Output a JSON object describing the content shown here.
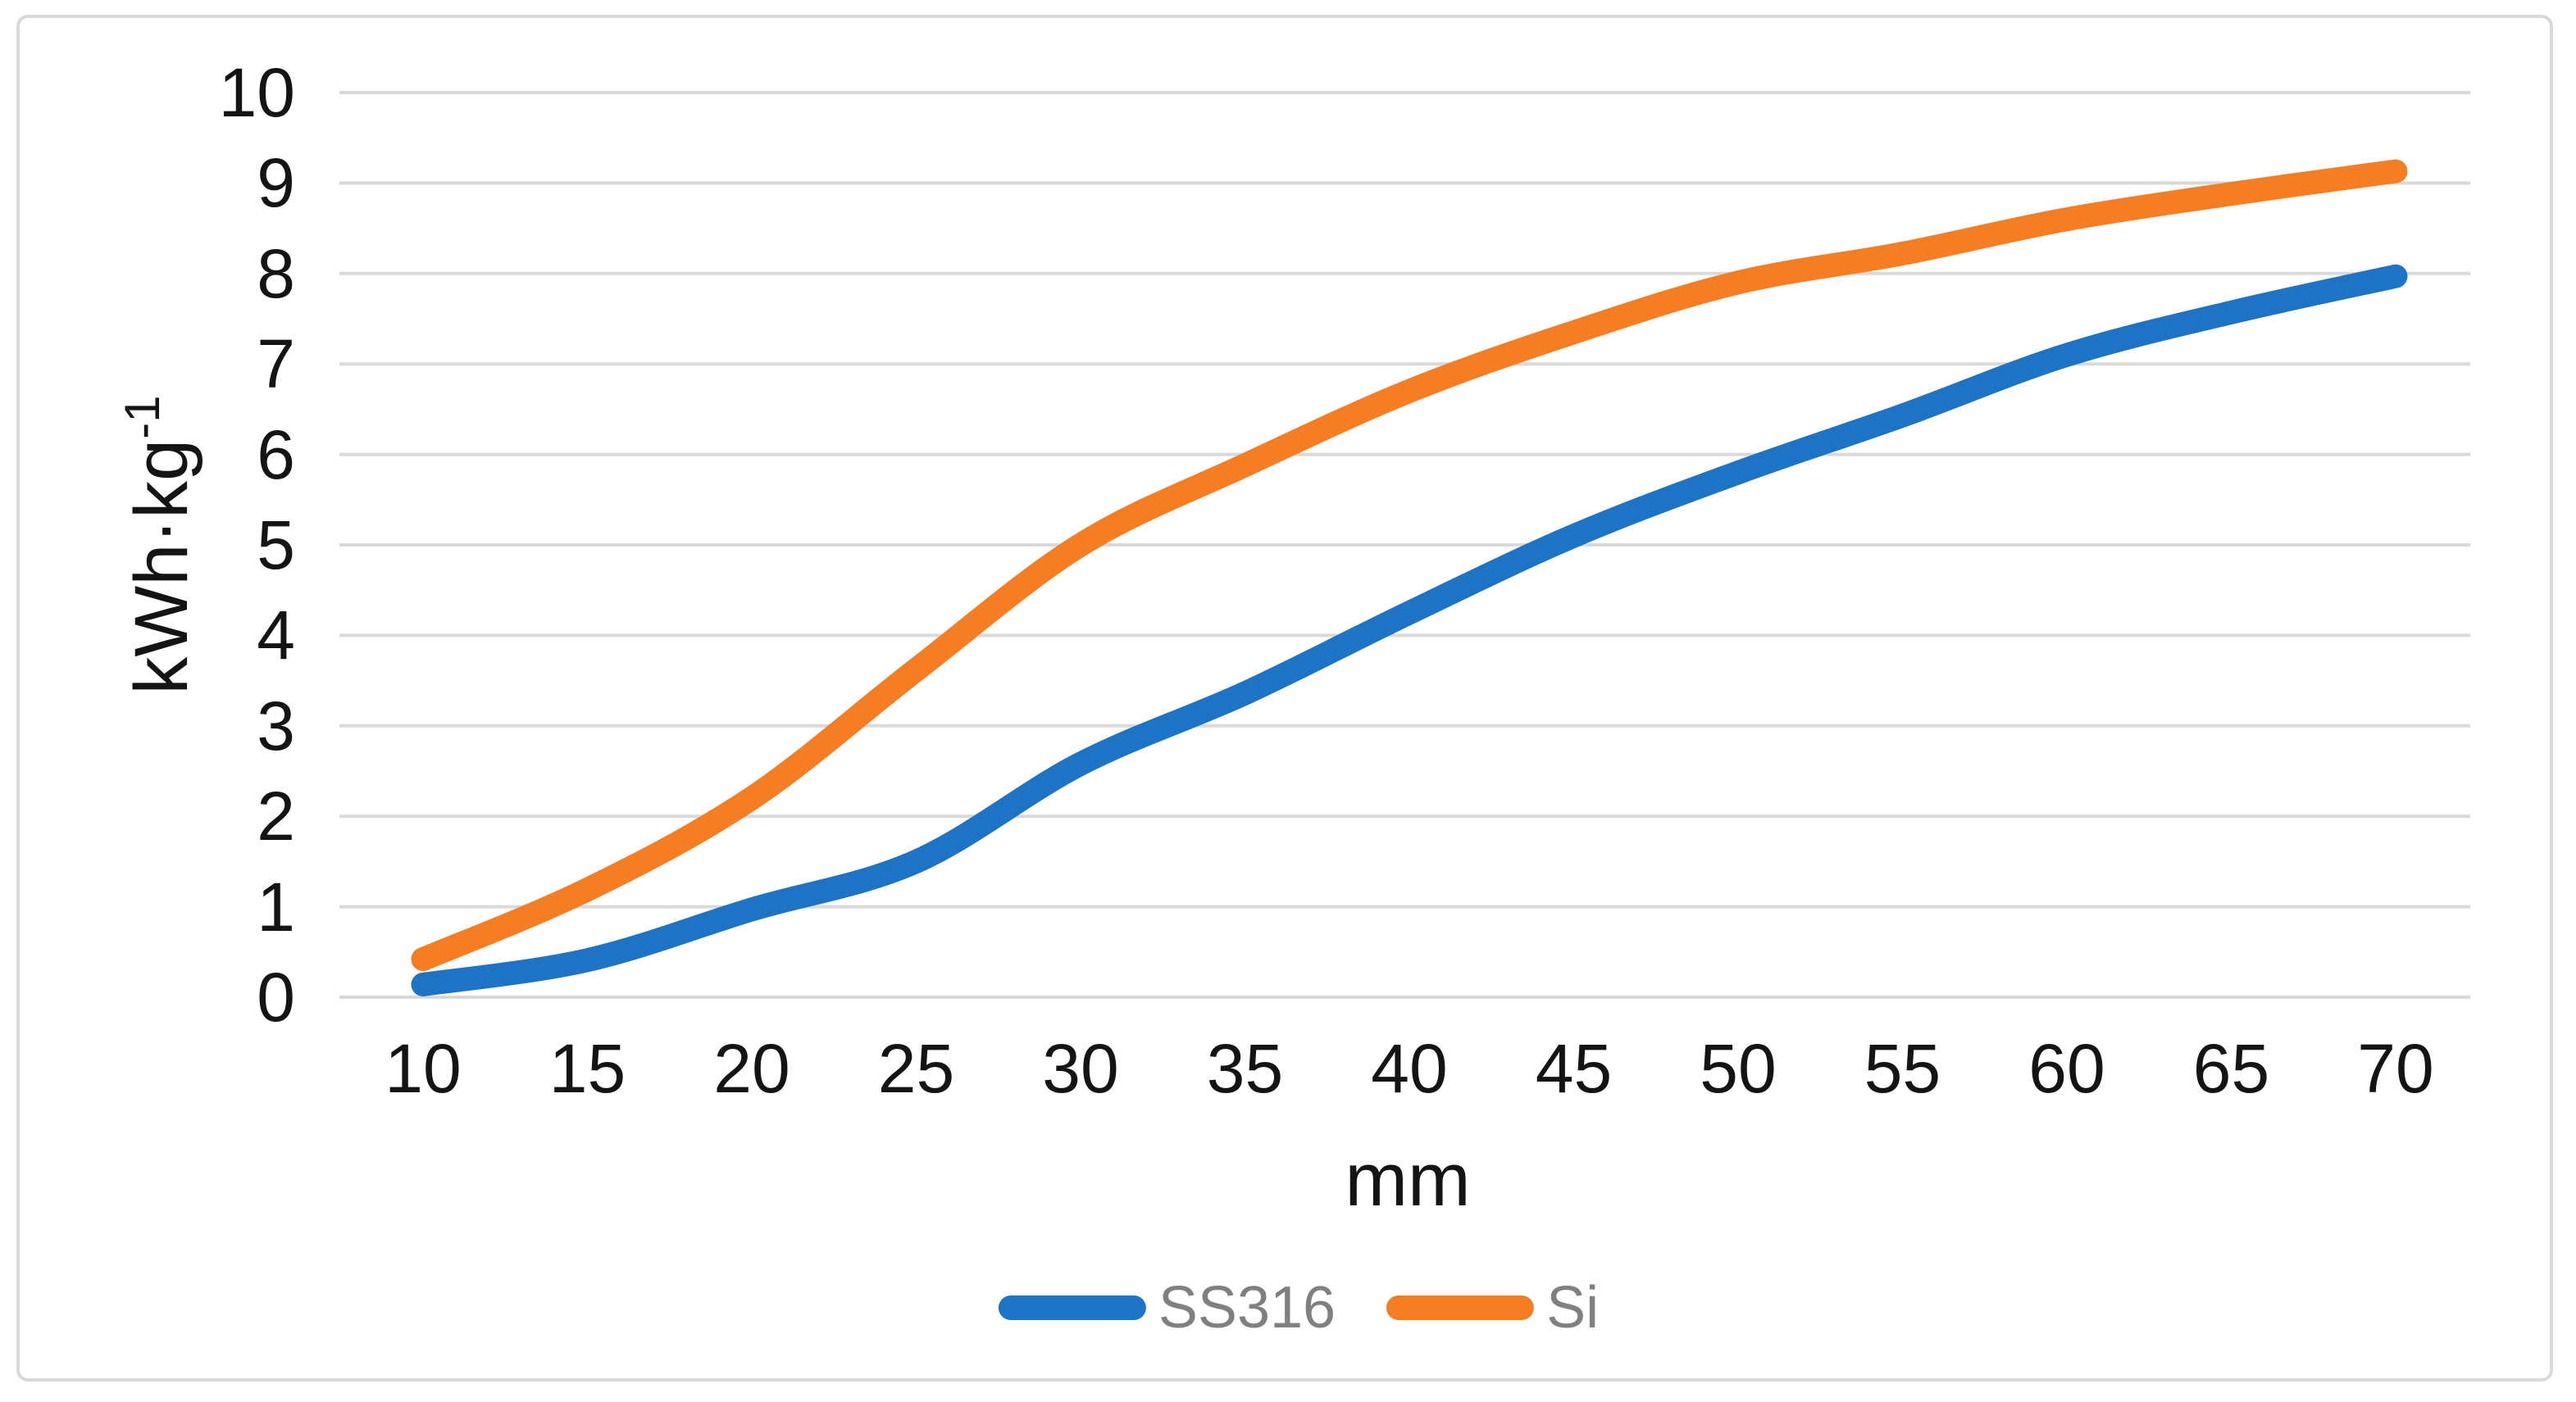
{
  "figure": {
    "background_color": "#ffffff",
    "border_color": "#d9d9d9"
  },
  "chart_data": {
    "type": "line",
    "smooth": true,
    "x": [
      10,
      15,
      20,
      25,
      30,
      35,
      40,
      45,
      50,
      55,
      60,
      65,
      70
    ],
    "series": [
      {
        "name": "SS316",
        "color": "#1e73c4",
        "values": [
          0.14,
          0.41,
          0.97,
          1.5,
          2.58,
          3.36,
          4.25,
          5.1,
          5.8,
          6.43,
          7.1,
          7.57,
          7.97
        ]
      },
      {
        "name": "Si",
        "color": "#f57e25",
        "values": [
          0.42,
          1.19,
          2.2,
          3.62,
          5.0,
          5.88,
          6.7,
          7.35,
          7.9,
          8.22,
          8.6,
          8.88,
          9.13
        ]
      }
    ],
    "title": "",
    "xlabel": "mm",
    "ylabel": "kWh·kg⁻¹",
    "ylabel_base": "kWh·kg",
    "ylabel_exponent": "-1",
    "xlim": [
      10,
      70
    ],
    "ylim": [
      0,
      10
    ],
    "xticks": [
      "10",
      "15",
      "20",
      "25",
      "30",
      "35",
      "40",
      "45",
      "50",
      "55",
      "60",
      "65",
      "70"
    ],
    "yticks": [
      "0",
      "1",
      "2",
      "3",
      "4",
      "5",
      "6",
      "7",
      "8",
      "9",
      "10"
    ],
    "grid": true,
    "gridline_color": "#d9d9d9",
    "tick_label_color": "#141414",
    "legend_position": "bottom-center",
    "legend_text_color": "#808080"
  }
}
